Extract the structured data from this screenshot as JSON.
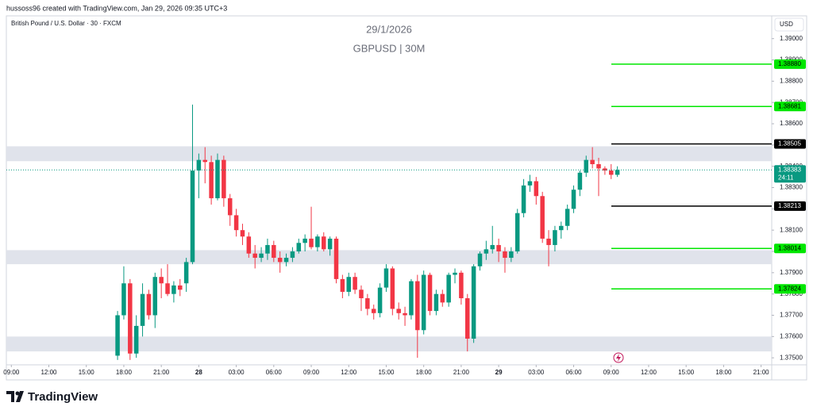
{
  "header": "hussoss96 created with TradingView.com, Jan 29, 2026 09:35 UTC+3",
  "symbol": "British Pound / U.S. Dollar · 30 · FXCM",
  "watermark": [
    "29/1/2026",
    "GBPUSD | 30M"
  ],
  "currency": "USD",
  "logo": "TradingView",
  "chart_data": {
    "type": "candlestick",
    "up_color": "#089981",
    "down_color": "#f23645",
    "open": [
      1.3751,
      1.377,
      1.3785,
      1.3752,
      1.3765,
      1.378,
      1.377,
      1.3788,
      1.3785,
      1.378,
      1.3784,
      1.3785,
      1.3795,
      1.3838,
      1.3843,
      1.3842,
      1.3825,
      1.3843,
      1.3825,
      1.3817,
      1.381,
      1.3807,
      1.3799,
      1.3797,
      1.3799,
      1.3803,
      1.3797,
      1.3795,
      1.3797,
      1.38,
      1.3804,
      1.3806,
      1.3802,
      1.3807,
      1.3801,
      1.3806,
      1.3787,
      1.3781,
      1.3788,
      1.3782,
      1.3778,
      1.3773,
      1.3771,
      1.3783,
      1.3792,
      1.3773,
      1.3771,
      1.377,
      1.3786,
      1.3763,
      1.3789,
      1.3772,
      1.378,
      1.3776,
      1.3789,
      1.379,
      1.3778,
      1.3759,
      1.3793,
      1.3799,
      1.3801,
      1.3803,
      1.38,
      1.3797,
      1.38,
      1.3818,
      1.3831,
      1.3833,
      1.3826,
      1.3806,
      1.3803,
      1.381,
      1.3812,
      1.382,
      1.3829,
      1.3837,
      1.3843,
      1.3841,
      1.3839,
      1.3838,
      1.3836
    ],
    "high": [
      1.3772,
      1.3793,
      1.3787,
      1.377,
      1.3785,
      1.3782,
      1.379,
      1.3792,
      1.3794,
      1.3786,
      1.3787,
      1.3797,
      1.3869,
      1.3846,
      1.3849,
      1.3845,
      1.3846,
      1.3845,
      1.3827,
      1.382,
      1.3813,
      1.3809,
      1.3803,
      1.3802,
      1.3806,
      1.3805,
      1.38,
      1.3799,
      1.3802,
      1.3806,
      1.3808,
      1.3821,
      1.3808,
      1.3809,
      1.3807,
      1.3807,
      1.3789,
      1.379,
      1.379,
      1.3784,
      1.378,
      1.3775,
      1.3785,
      1.3794,
      1.3793,
      1.3776,
      1.3774,
      1.3787,
      1.3789,
      1.3791,
      1.379,
      1.3782,
      1.3782,
      1.379,
      1.3792,
      1.3791,
      1.378,
      1.3794,
      1.38,
      1.3805,
      1.3812,
      1.3806,
      1.3802,
      1.3802,
      1.382,
      1.3834,
      1.3836,
      1.3835,
      1.3828,
      1.381,
      1.3812,
      1.3814,
      1.3822,
      1.3831,
      1.3838,
      1.3845,
      1.3849,
      1.3844,
      1.384,
      1.3841,
      1.384
    ],
    "low": [
      1.3749,
      1.3768,
      1.3749,
      1.375,
      1.376,
      1.3768,
      1.3764,
      1.3778,
      1.3779,
      1.3776,
      1.3779,
      1.3781,
      1.3794,
      1.3825,
      1.3832,
      1.3822,
      1.3824,
      1.3821,
      1.3812,
      1.3807,
      1.3803,
      1.3797,
      1.3792,
      1.3795,
      1.3796,
      1.3795,
      1.379,
      1.3793,
      1.3795,
      1.3799,
      1.38,
      1.3801,
      1.38,
      1.38,
      1.3798,
      1.3785,
      1.3778,
      1.3779,
      1.378,
      1.3772,
      1.377,
      1.3768,
      1.3769,
      1.3781,
      1.377,
      1.3768,
      1.3765,
      1.3768,
      1.375,
      1.3761,
      1.377,
      1.377,
      1.3774,
      1.3774,
      1.3785,
      1.3775,
      1.3753,
      1.3757,
      1.3791,
      1.3796,
      1.3799,
      1.3795,
      1.379,
      1.3795,
      1.3799,
      1.3816,
      1.3828,
      1.3822,
      1.3804,
      1.3793,
      1.38,
      1.3806,
      1.381,
      1.3818,
      1.3826,
      1.3835,
      1.3839,
      1.3826,
      1.3836,
      1.3834,
      1.3835
    ],
    "close": [
      1.377,
      1.3785,
      1.3752,
      1.3765,
      1.378,
      1.377,
      1.3788,
      1.3785,
      1.378,
      1.3784,
      1.3782,
      1.3795,
      1.3838,
      1.3843,
      1.3842,
      1.3825,
      1.3843,
      1.3825,
      1.3817,
      1.381,
      1.3807,
      1.3799,
      1.3797,
      1.3799,
      1.3803,
      1.3797,
      1.3795,
      1.3797,
      1.38,
      1.3804,
      1.3806,
      1.3802,
      1.3807,
      1.3801,
      1.3806,
      1.3787,
      1.3781,
      1.3788,
      1.3782,
      1.3778,
      1.3773,
      1.3771,
      1.3783,
      1.3792,
      1.3773,
      1.3771,
      1.377,
      1.3786,
      1.3763,
      1.3789,
      1.3772,
      1.378,
      1.3776,
      1.3789,
      1.379,
      1.3778,
      1.3759,
      1.3793,
      1.3799,
      1.3801,
      1.3803,
      1.38,
      1.3797,
      1.38,
      1.3818,
      1.3831,
      1.3833,
      1.3826,
      1.3806,
      1.3803,
      1.381,
      1.3812,
      1.382,
      1.3829,
      1.3837,
      1.3843,
      1.3841,
      1.3839,
      1.3838,
      1.3836,
      1.38383
    ],
    "xlim": [
      -17.8,
      104.7
    ],
    "xticks": [
      {
        "value": -17,
        "label": "09:00"
      },
      {
        "value": -11,
        "label": "12:00"
      },
      {
        "value": -5,
        "label": "15:00"
      },
      {
        "value": 1,
        "label": "18:00"
      },
      {
        "value": 7,
        "label": "21:00"
      },
      {
        "value": 13,
        "label": "28"
      },
      {
        "value": 19,
        "label": "03:00"
      },
      {
        "value": 25,
        "label": "06:00"
      },
      {
        "value": 31,
        "label": "09:00"
      },
      {
        "value": 37,
        "label": "12:00"
      },
      {
        "value": 43,
        "label": "15:00"
      },
      {
        "value": 49,
        "label": "18:00"
      },
      {
        "value": 55,
        "label": "21:00"
      },
      {
        "value": 61,
        "label": "29"
      },
      {
        "value": 67,
        "label": "03:00"
      },
      {
        "value": 73,
        "label": "06:00"
      },
      {
        "value": 79,
        "label": "09:00"
      },
      {
        "value": 85,
        "label": "12:00"
      },
      {
        "value": 91,
        "label": "15:00"
      },
      {
        "value": 97,
        "label": "18:00"
      },
      {
        "value": 103,
        "label": "21:00"
      }
    ],
    "ylim": [
      1.37467,
      1.39107
    ],
    "yticks": [
      {
        "value": 1.39,
        "label": "1.39000"
      },
      {
        "value": 1.389,
        "label": "1.38900"
      },
      {
        "value": 1.388,
        "label": "1.38800"
      },
      {
        "value": 1.387,
        "label": "1.38700"
      },
      {
        "value": 1.386,
        "label": "1.38600"
      },
      {
        "value": 1.385,
        "label": "1.38500"
      },
      {
        "value": 1.384,
        "label": "1.38400"
      },
      {
        "value": 1.383,
        "label": "1.38300"
      },
      {
        "value": 1.382,
        "label": "1.38200"
      },
      {
        "value": 1.381,
        "label": "1.38100"
      },
      {
        "value": 1.38,
        "label": "1.38000"
      },
      {
        "value": 1.379,
        "label": "1.37900"
      },
      {
        "value": 1.378,
        "label": "1.37800"
      },
      {
        "value": 1.377,
        "label": "1.37700"
      },
      {
        "value": 1.376,
        "label": "1.37600"
      },
      {
        "value": 1.375,
        "label": "1.37500"
      }
    ],
    "zones": [
      {
        "from": 1.38494,
        "to": 1.38424
      },
      {
        "from": 1.38006,
        "to": 1.3794
      },
      {
        "from": 1.376,
        "to": 1.3753
      }
    ],
    "zone_color": "#e0e3eb",
    "levels": [
      {
        "value": 1.3888,
        "label": "1.38880",
        "color": "#00e600"
      },
      {
        "value": 1.38681,
        "color": "#00e600"
      },
      {
        "value": 1.38505,
        "color": "#000000"
      },
      {
        "value": 1.38213,
        "color": "#000000"
      },
      {
        "value": 1.38014,
        "color": "#00e600"
      },
      {
        "value": 1.37824,
        "color": "#00e600"
      }
    ],
    "last_price": 1.38383,
    "countdown": "24:11"
  }
}
